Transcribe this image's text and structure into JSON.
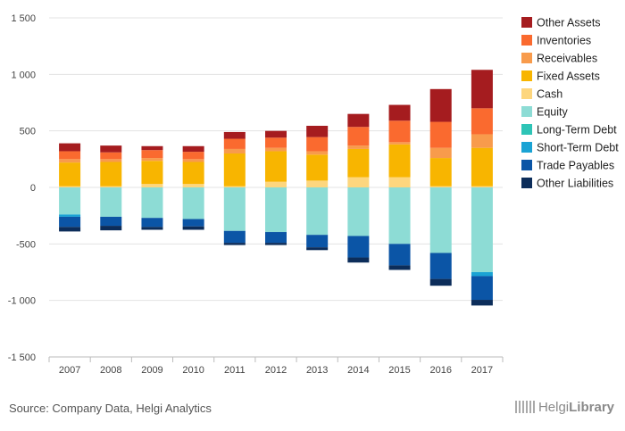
{
  "chart_data": {
    "type": "bar",
    "stacked": true,
    "categories": [
      "2007",
      "2008",
      "2009",
      "2010",
      "2011",
      "2012",
      "2013",
      "2014",
      "2015",
      "2016",
      "2017"
    ],
    "ylim": [
      -1500,
      1500
    ],
    "yticks": [
      1500,
      1000,
      500,
      0,
      -500,
      -1000,
      -1500
    ],
    "ytick_labels": [
      "1 500",
      "1 000",
      "500",
      "0",
      "-500",
      "-1 000",
      "-1 500"
    ],
    "grid": true,
    "legend_position": "right",
    "assets": [
      {
        "name": "Cash",
        "color": "#fdd67e",
        "values": [
          10,
          10,
          30,
          30,
          10,
          50,
          60,
          90,
          90,
          10,
          10
        ]
      },
      {
        "name": "Fixed Assets",
        "color": "#f8b500",
        "values": [
          210,
          215,
          205,
          195,
          290,
          270,
          230,
          250,
          290,
          250,
          340
        ]
      },
      {
        "name": "Receivables",
        "color": "#f89b4c",
        "values": [
          30,
          25,
          25,
          25,
          40,
          30,
          30,
          30,
          20,
          90,
          120
        ]
      },
      {
        "name": "Inventories",
        "color": "#fa6a2f",
        "values": [
          70,
          60,
          70,
          65,
          90,
          90,
          125,
          165,
          190,
          230,
          230
        ]
      },
      {
        "name": "Other Assets",
        "color": "#a51c1f",
        "values": [
          70,
          60,
          35,
          50,
          60,
          60,
          100,
          115,
          140,
          290,
          340
        ]
      }
    ],
    "liabilities": [
      {
        "name": "Equity",
        "color": "#8ddcd5",
        "values": [
          -240,
          -260,
          -270,
          -280,
          -385,
          -395,
          -420,
          -430,
          -500,
          -580,
          -750
        ]
      },
      {
        "name": "Long-Term Debt",
        "color": "#2ec4b6",
        "values": [
          0,
          0,
          0,
          0,
          0,
          0,
          0,
          0,
          0,
          0,
          0
        ]
      },
      {
        "name": "Short-Term Debt",
        "color": "#1aa3d4",
        "values": [
          -20,
          0,
          0,
          0,
          0,
          0,
          0,
          0,
          0,
          0,
          -35
        ]
      },
      {
        "name": "Trade Payables",
        "color": "#0b55a6",
        "values": [
          -90,
          -80,
          -80,
          -65,
          -105,
          -95,
          -110,
          -190,
          -190,
          -230,
          -210
        ]
      },
      {
        "name": "Other Liabilities",
        "color": "#0c2d5a",
        "values": [
          -40,
          -40,
          -25,
          -30,
          -20,
          -20,
          -25,
          -45,
          -40,
          -60,
          -50
        ]
      }
    ],
    "legend_order": [
      "Other Assets",
      "Inventories",
      "Receivables",
      "Fixed Assets",
      "Cash",
      "Equity",
      "Long-Term Debt",
      "Short-Term Debt",
      "Trade Payables",
      "Other Liabilities"
    ]
  },
  "footer": {
    "source": "Source: Company Data, Helgi Analytics",
    "logo_part1": "Helgi",
    "logo_part2": "Library"
  }
}
